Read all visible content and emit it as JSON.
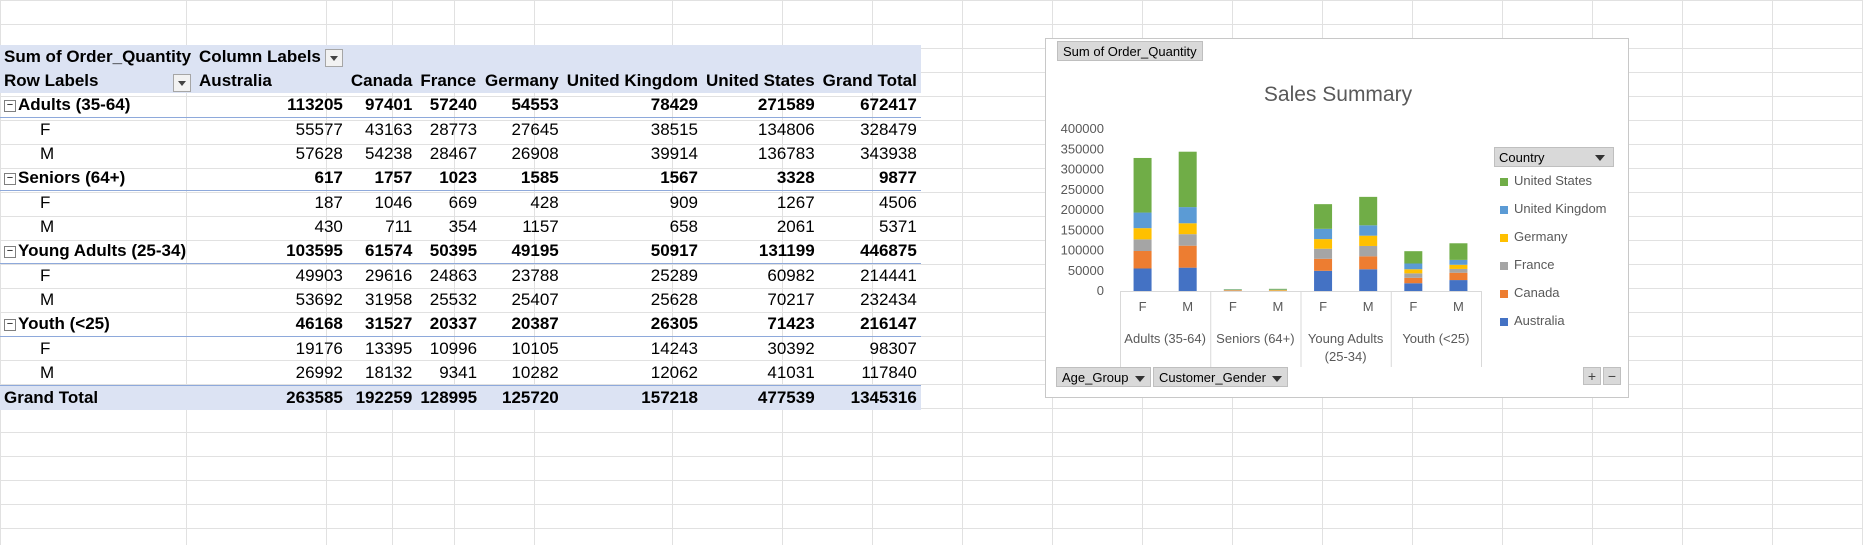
{
  "pivot": {
    "corner_label": "Sum of Order_Quantity",
    "column_labels_label": "Column Labels",
    "row_labels_label": "Row Labels",
    "countries": [
      "Australia",
      "Canada",
      "France",
      "Germany",
      "United Kingdom",
      "United States",
      "Grand Total"
    ],
    "rows": [
      {
        "label": "Adults (35-64)",
        "level": "group",
        "values": [
          "113205",
          "97401",
          "57240",
          "54553",
          "78429",
          "271589",
          "672417"
        ]
      },
      {
        "label": "F",
        "level": "sub",
        "values": [
          "55577",
          "43163",
          "28773",
          "27645",
          "38515",
          "134806",
          "328479"
        ]
      },
      {
        "label": "M",
        "level": "sub",
        "values": [
          "57628",
          "54238",
          "28467",
          "26908",
          "39914",
          "136783",
          "343938"
        ]
      },
      {
        "label": "Seniors (64+)",
        "level": "group",
        "values": [
          "617",
          "1757",
          "1023",
          "1585",
          "1567",
          "3328",
          "9877"
        ]
      },
      {
        "label": "F",
        "level": "sub",
        "values": [
          "187",
          "1046",
          "669",
          "428",
          "909",
          "1267",
          "4506"
        ]
      },
      {
        "label": "M",
        "level": "sub",
        "values": [
          "430",
          "711",
          "354",
          "1157",
          "658",
          "2061",
          "5371"
        ]
      },
      {
        "label": "Young Adults (25-34)",
        "level": "group",
        "values": [
          "103595",
          "61574",
          "50395",
          "49195",
          "50917",
          "131199",
          "446875"
        ]
      },
      {
        "label": "F",
        "level": "sub",
        "values": [
          "49903",
          "29616",
          "24863",
          "23788",
          "25289",
          "60982",
          "214441"
        ]
      },
      {
        "label": "M",
        "level": "sub",
        "values": [
          "53692",
          "31958",
          "25532",
          "25407",
          "25628",
          "70217",
          "232434"
        ]
      },
      {
        "label": "Youth (<25)",
        "level": "group",
        "values": [
          "46168",
          "31527",
          "20337",
          "20387",
          "26305",
          "71423",
          "216147"
        ]
      },
      {
        "label": "F",
        "level": "sub",
        "values": [
          "19176",
          "13395",
          "10996",
          "10105",
          "14243",
          "30392",
          "98307"
        ]
      },
      {
        "label": "M",
        "level": "sub",
        "values": [
          "26992",
          "18132",
          "9341",
          "10282",
          "12062",
          "41031",
          "117840"
        ]
      }
    ],
    "grand_total": {
      "label": "Grand Total",
      "values": [
        "263585",
        "192259",
        "128995",
        "125720",
        "157218",
        "477539",
        "1345316"
      ]
    }
  },
  "chart_panel": {
    "value_field_button": "Sum of Order_Quantity",
    "axis_field_buttons": [
      "Age_Group",
      "Customer_Gender"
    ],
    "legend_title": "Country",
    "expand_label": "+",
    "collapse_label": "−"
  },
  "chart_data": {
    "type": "bar",
    "stacked": true,
    "title": "Sales Summary",
    "xlabel": "",
    "ylabel": "",
    "ylim": [
      0,
      400000
    ],
    "yticks": [
      "0",
      "50000",
      "100000",
      "150000",
      "200000",
      "250000",
      "300000",
      "350000",
      "400000"
    ],
    "categories": [
      "F",
      "M",
      "F",
      "M",
      "F",
      "M",
      "F",
      "M"
    ],
    "groups": [
      {
        "label": "Adults (35-64)",
        "count": 2
      },
      {
        "label": "Seniors (64+)",
        "count": 2
      },
      {
        "label": "Young Adults (25-34)",
        "label_lines": [
          "Young Adults",
          "(25-34)"
        ],
        "count": 2
      },
      {
        "label": "Youth (<25)",
        "count": 2
      }
    ],
    "legend_position": "right",
    "series": [
      {
        "name": "Australia",
        "color": "#4472c4",
        "values": [
          55577,
          57628,
          187,
          430,
          49903,
          53692,
          19176,
          26992
        ]
      },
      {
        "name": "Canada",
        "color": "#ed7d31",
        "values": [
          43163,
          54238,
          1046,
          711,
          29616,
          31958,
          13395,
          18132
        ]
      },
      {
        "name": "France",
        "color": "#a5a5a5",
        "values": [
          28773,
          28467,
          669,
          354,
          24863,
          25532,
          10996,
          9341
        ]
      },
      {
        "name": "Germany",
        "color": "#ffc000",
        "values": [
          27645,
          26908,
          428,
          1157,
          23788,
          25407,
          10105,
          10282
        ]
      },
      {
        "name": "United Kingdom",
        "color": "#5b9bd5",
        "values": [
          38515,
          39914,
          909,
          658,
          25289,
          25628,
          14243,
          12062
        ]
      },
      {
        "name": "United States",
        "color": "#70ad47",
        "values": [
          134806,
          136783,
          1267,
          2061,
          60982,
          70217,
          30392,
          41031
        ]
      }
    ]
  }
}
